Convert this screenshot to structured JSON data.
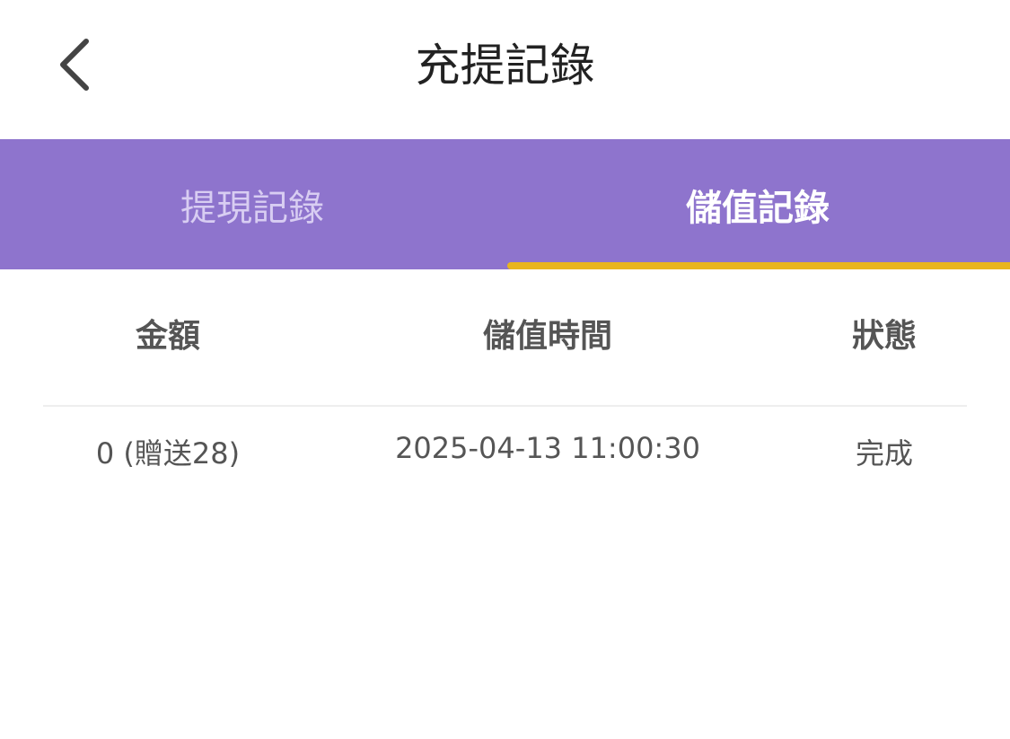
{
  "header": {
    "title": "充提記錄",
    "back_icon": "chevron-left-icon"
  },
  "tabs": [
    {
      "label": "提現記錄",
      "active": false
    },
    {
      "label": "儲值記錄",
      "active": true
    }
  ],
  "colors": {
    "tab_bar": "#8e74cd",
    "active_indicator": "#e9b51e"
  },
  "table": {
    "columns": [
      "金額",
      "儲值時間",
      "狀態"
    ],
    "rows": [
      {
        "amount": "0 (贈送28)",
        "time": "2025-04-13 11:00:30",
        "status": "完成"
      }
    ]
  }
}
